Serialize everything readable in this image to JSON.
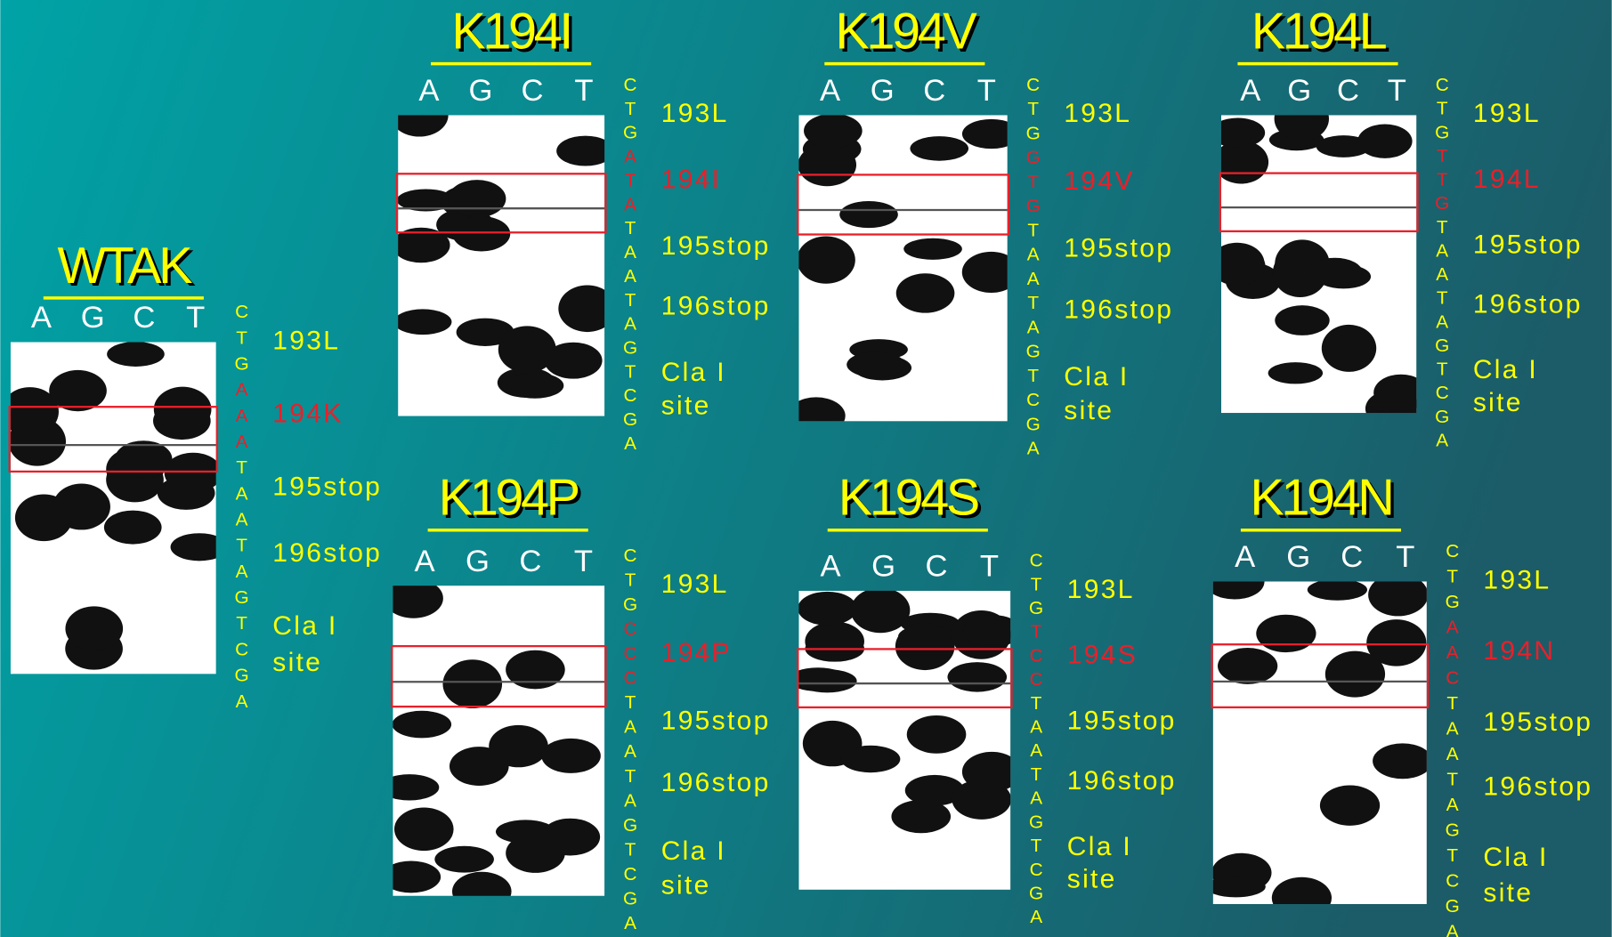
{
  "slide": {
    "text_color": "#ffff00",
    "mutation_color": "#e8202a",
    "panels": [
      {
        "title": "WTAK",
        "lanes": [
          "A",
          "G",
          "C",
          "T"
        ],
        "sequence_before": "CTG",
        "codon": "AAA",
        "sequence_after": "TAATAGTCGA",
        "labels": [
          "193L",
          "194K",
          "195stop",
          "196stop",
          "Cla I",
          "site"
        ]
      },
      {
        "title": "K194I",
        "lanes": [
          "A",
          "G",
          "C",
          "T"
        ],
        "sequence_before": "CTG",
        "codon": "ATA",
        "sequence_after": "TAATAGTCGA",
        "labels": [
          "193L",
          "194I",
          "195stop",
          "196stop",
          "Cla I",
          "site"
        ]
      },
      {
        "title": "K194V",
        "lanes": [
          "A",
          "G",
          "C",
          "T"
        ],
        "sequence_before": "CTG",
        "codon": "GTG",
        "sequence_after": "TAATAGTCGA",
        "labels": [
          "193L",
          "194V",
          "195stop",
          "196stop",
          "Cla I",
          "site"
        ]
      },
      {
        "title": "K194L",
        "lanes": [
          "A",
          "G",
          "C",
          "T"
        ],
        "sequence_before": "CTG",
        "codon": "TTG",
        "sequence_after": "TAATAGTCGA",
        "labels": [
          "193L",
          "194L",
          "195stop",
          "196stop",
          "Cla I",
          "site"
        ]
      },
      {
        "title": "K194P",
        "lanes": [
          "A",
          "G",
          "C",
          "T"
        ],
        "sequence_before": "CTG",
        "codon": "CCC",
        "sequence_after": "TAATAGTCGA",
        "labels": [
          "193L",
          "194P",
          "195stop",
          "196stop",
          "Cla I",
          "site"
        ]
      },
      {
        "title": "K194S",
        "lanes": [
          "A",
          "G",
          "C",
          "T"
        ],
        "sequence_before": "CTG",
        "codon": "TCC",
        "sequence_after": "TAATAGTCGA",
        "labels": [
          "193L",
          "194S",
          "195stop",
          "196stop",
          "Cla I",
          "site"
        ]
      },
      {
        "title": "K194N",
        "lanes": [
          "A",
          "G",
          "C",
          "T"
        ],
        "sequence_before": "CTG",
        "codon": "AAC",
        "sequence_after": "TAATAGTCGA",
        "labels": [
          "193L",
          "194N",
          "195stop",
          "196stop",
          "Cla I",
          "site"
        ]
      }
    ]
  }
}
